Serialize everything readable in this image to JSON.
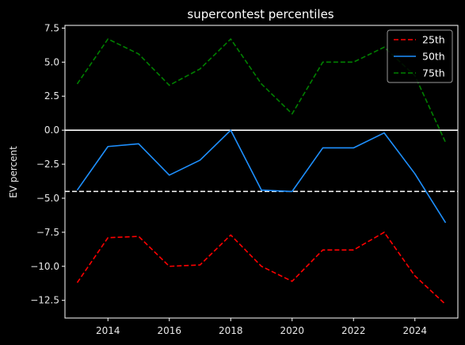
{
  "chart_data": {
    "type": "line",
    "title": "supercontest percentiles",
    "xlabel": "",
    "ylabel": "EV percent",
    "xlim": [
      2012.6,
      2025.4
    ],
    "ylim": [
      -13.8,
      7.7
    ],
    "xticks": [
      2014,
      2016,
      2018,
      2020,
      2022,
      2024
    ],
    "yticks": [
      7.5,
      5.0,
      2.5,
      0.0,
      -2.5,
      -5.0,
      -7.5,
      -10.0,
      -12.5
    ],
    "ytick_labels": [
      "7.5",
      "5.0",
      "2.5",
      "0.0",
      "−2.5",
      "−5.0",
      "−7.5",
      "−10.0",
      "−12.5"
    ],
    "grid": false,
    "legend_position": "top-right",
    "x": [
      2013,
      2014,
      2015,
      2016,
      2017,
      2018,
      2019,
      2020,
      2021,
      2022,
      2023,
      2024,
      2025
    ],
    "series": [
      {
        "name": "25th",
        "color": "#ff0000",
        "style": "dashed",
        "values": [
          -11.2,
          -7.9,
          -7.8,
          -10.0,
          -9.9,
          -7.7,
          -10.0,
          -11.1,
          -8.8,
          -8.8,
          -7.5,
          -10.7,
          -12.8
        ]
      },
      {
        "name": "50th",
        "color": "#1e90ff",
        "style": "solid",
        "values": [
          -4.4,
          -1.2,
          -1.0,
          -3.3,
          -2.2,
          0.0,
          -4.4,
          -4.5,
          -1.3,
          -1.3,
          -0.2,
          -3.2,
          -6.8
        ]
      },
      {
        "name": "75th",
        "color": "#008000",
        "style": "dashed",
        "values": [
          3.4,
          6.7,
          5.6,
          3.3,
          4.5,
          6.7,
          3.4,
          1.2,
          5.0,
          5.0,
          6.1,
          4.0,
          -0.9
        ]
      }
    ],
    "reference_lines": [
      {
        "y": 0.0,
        "color": "#ffffff",
        "style": "solid"
      },
      {
        "y": -4.5,
        "color": "#ffffff",
        "style": "dashed"
      }
    ]
  }
}
